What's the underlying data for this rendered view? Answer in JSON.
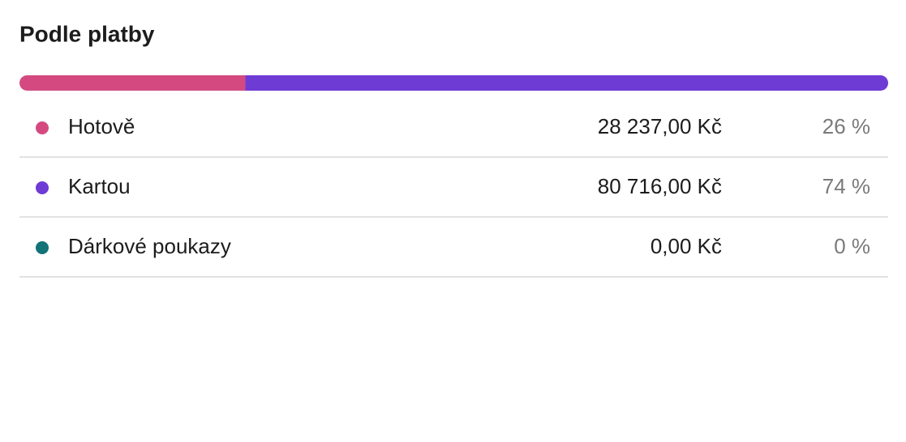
{
  "title": "Podle platby",
  "payments": [
    {
      "name": "Hotově",
      "color": "#d44a80",
      "share": 26,
      "share_label": "26 %",
      "amount": 28237.0,
      "amount_label": "28 237,00 Kč"
    },
    {
      "name": "Kartou",
      "color": "#6e3bd4",
      "share": 74,
      "share_label": "74 %",
      "amount": 80716.0,
      "amount_label": "80 716,00 Kč"
    },
    {
      "name": "Dárkové poukazy",
      "color": "#137377",
      "share": 0,
      "share_label": "0 %",
      "amount": 0.0,
      "amount_label": "0,00 Kč"
    }
  ]
}
